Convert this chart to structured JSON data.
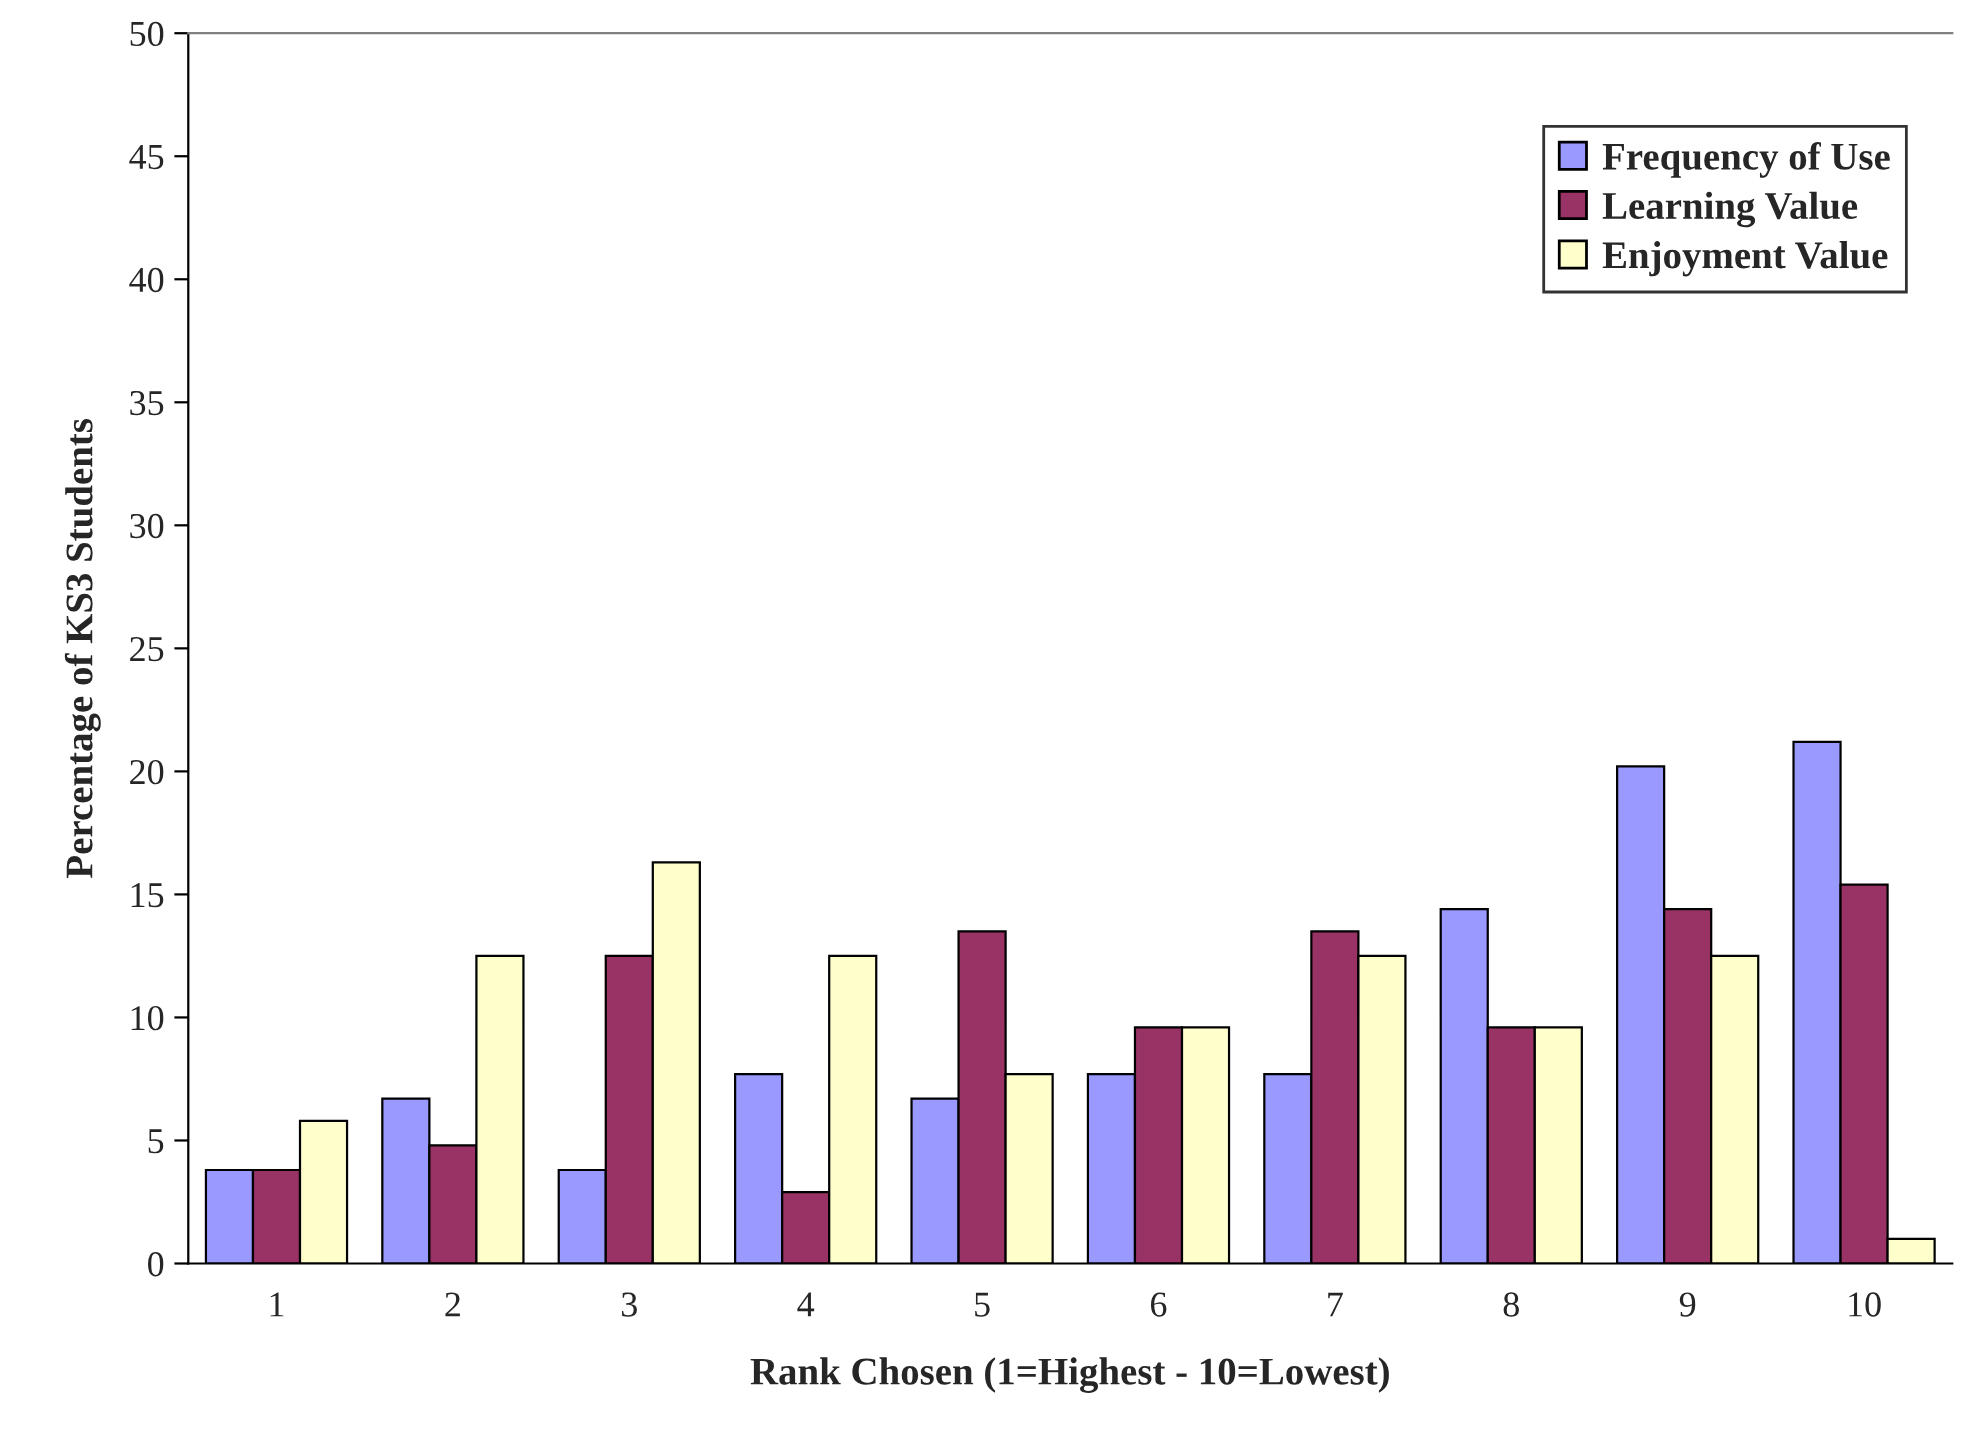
{
  "chart_data": {
    "type": "bar",
    "xlabel": "Rank Chosen (1=Highest - 10=Lowest)",
    "ylabel": "Percentage of KS3 Students",
    "categories": [
      "1",
      "2",
      "3",
      "4",
      "5",
      "6",
      "7",
      "8",
      "9",
      "10"
    ],
    "series": [
      {
        "name": "Frequency of Use",
        "color": "#9999ff",
        "values": [
          3.8,
          6.7,
          3.8,
          7.7,
          6.7,
          7.7,
          7.7,
          14.4,
          20.2,
          21.2
        ]
      },
      {
        "name": "Learning Value",
        "color": "#993366",
        "values": [
          3.8,
          4.8,
          12.5,
          2.9,
          13.5,
          9.6,
          13.5,
          9.6,
          14.4,
          15.4
        ]
      },
      {
        "name": "Enjoyment Value",
        "color": "#ffffcc",
        "values": [
          5.8,
          12.5,
          16.3,
          12.5,
          7.7,
          9.6,
          12.5,
          9.6,
          12.5,
          1.0
        ]
      }
    ],
    "ylim": [
      0,
      50
    ],
    "yticks": [
      0,
      5,
      10,
      15,
      20,
      25,
      30,
      35,
      40,
      45,
      50
    ],
    "grid": false,
    "legend": "top right"
  }
}
